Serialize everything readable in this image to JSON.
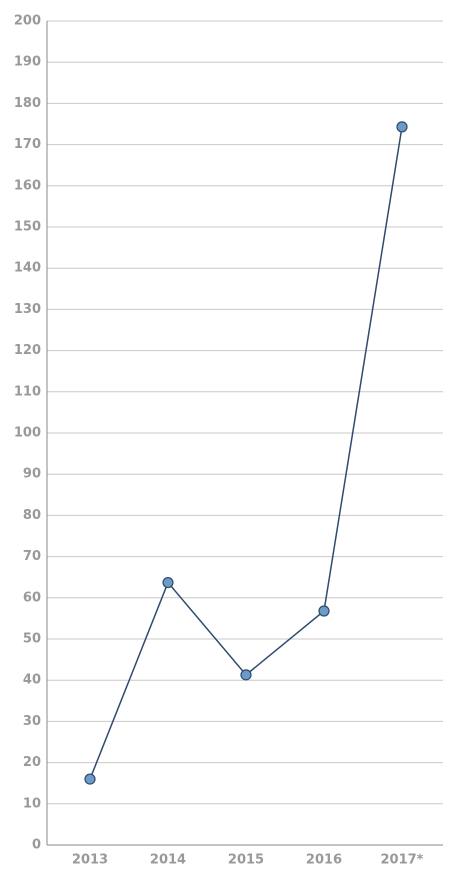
{
  "chart_data": {
    "type": "line",
    "categories": [
      "2013",
      "2014",
      "2015",
      "2016",
      "2017*"
    ],
    "values": [
      16,
      63.7,
      41.3,
      56.8,
      174.3
    ],
    "color": "#2f4b6e",
    "marker_color": "#6b9bc6",
    "ylim": [
      0,
      200
    ],
    "yticks": [
      0,
      10,
      20,
      30,
      40,
      50,
      60,
      70,
      80,
      90,
      100,
      110,
      120,
      130,
      140,
      150,
      160,
      170,
      180,
      190,
      200
    ],
    "grid": true
  }
}
